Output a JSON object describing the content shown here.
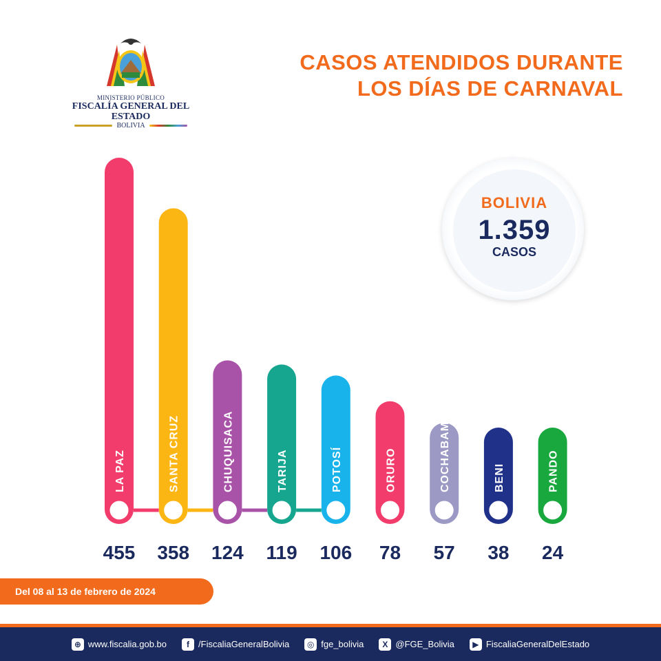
{
  "logo": {
    "ministry": "MINISTERIO PÚBLICO",
    "org": "FISCALÍA GENERAL DEL ESTADO",
    "country": "BOLIVIA"
  },
  "title": {
    "line1": "CASOS ATENDIDOS DURANTE",
    "line2": "LOS DÍAS DE CARNAVAL"
  },
  "badge": {
    "country": "BOLIVIA",
    "total": "1.359",
    "unit": "CASOS"
  },
  "chart_data": {
    "type": "bar",
    "title": "CASOS ATENDIDOS DURANTE LOS DÍAS DE CARNAVAL",
    "categories": [
      "LA PAZ",
      "SANTA CRUZ",
      "CHUQUISACA",
      "TARIJA",
      "POTOSÍ",
      "ORURO",
      "COCHABAMBA",
      "BENI",
      "PANDO"
    ],
    "values": [
      455,
      358,
      124,
      119,
      106,
      78,
      57,
      38,
      24
    ],
    "value_labels": [
      "455",
      "358",
      "124",
      "119",
      "106",
      "78",
      "57",
      "38",
      "24"
    ],
    "colors": [
      "#f23d6c",
      "#fbb614",
      "#a852a8",
      "#16a68f",
      "#19b3ec",
      "#f23d6c",
      "#9c9ac4",
      "#20318a",
      "#18a83e"
    ]
  },
  "date_range": "Del 08 al 13 de febrero de 2024",
  "footer": {
    "website": "www.fiscalia.gob.bo",
    "facebook": "/FiscaliaGeneralBolivia",
    "instagram": "fge_bolivia",
    "x": "@FGE_Bolivia",
    "youtube": "FiscaliaGeneralDelEstado"
  }
}
